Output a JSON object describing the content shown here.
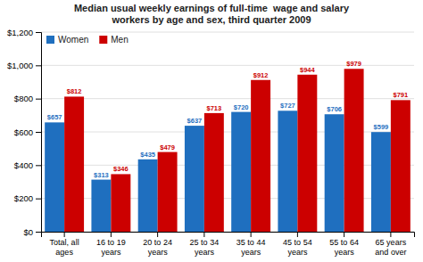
{
  "chart_data": {
    "type": "bar",
    "title": "Median usual weekly earnings of full-time  wage and salary\nworkers by age and sex, third quarter 2009",
    "categories": [
      "Total, all\nages",
      "16 to 19\nyears",
      "20 to 24\nyears",
      "25 to 34\nyears",
      "35 to 44\nyears",
      "45 to 54\nyears",
      "55 to 64\nyears",
      "65 years\nand over"
    ],
    "series": [
      {
        "name": "Women",
        "color": "#1F6FBF",
        "values": [
          657,
          313,
          435,
          637,
          720,
          727,
          706,
          599
        ],
        "value_labels": [
          "$657",
          "$313",
          "$435",
          "$637",
          "$720",
          "$727",
          "$706",
          "$599"
        ]
      },
      {
        "name": "Men",
        "color": "#CC0000",
        "values": [
          812,
          346,
          479,
          713,
          912,
          944,
          979,
          791
        ],
        "value_labels": [
          "$812",
          "$346",
          "$479",
          "$713",
          "$912",
          "$944",
          "$979",
          "$791"
        ]
      }
    ],
    "ylim": [
      0,
      1200
    ],
    "yticks": [
      {
        "value": 0,
        "label": "$0"
      },
      {
        "value": 200,
        "label": "$200"
      },
      {
        "value": 400,
        "label": "$400"
      },
      {
        "value": 600,
        "label": "$600"
      },
      {
        "value": 800,
        "label": "$800"
      },
      {
        "value": 1000,
        "label": "$1,000"
      },
      {
        "value": 1200,
        "label": "$1,200"
      }
    ],
    "grid": true,
    "legend": "upper left",
    "data_labels": true
  }
}
